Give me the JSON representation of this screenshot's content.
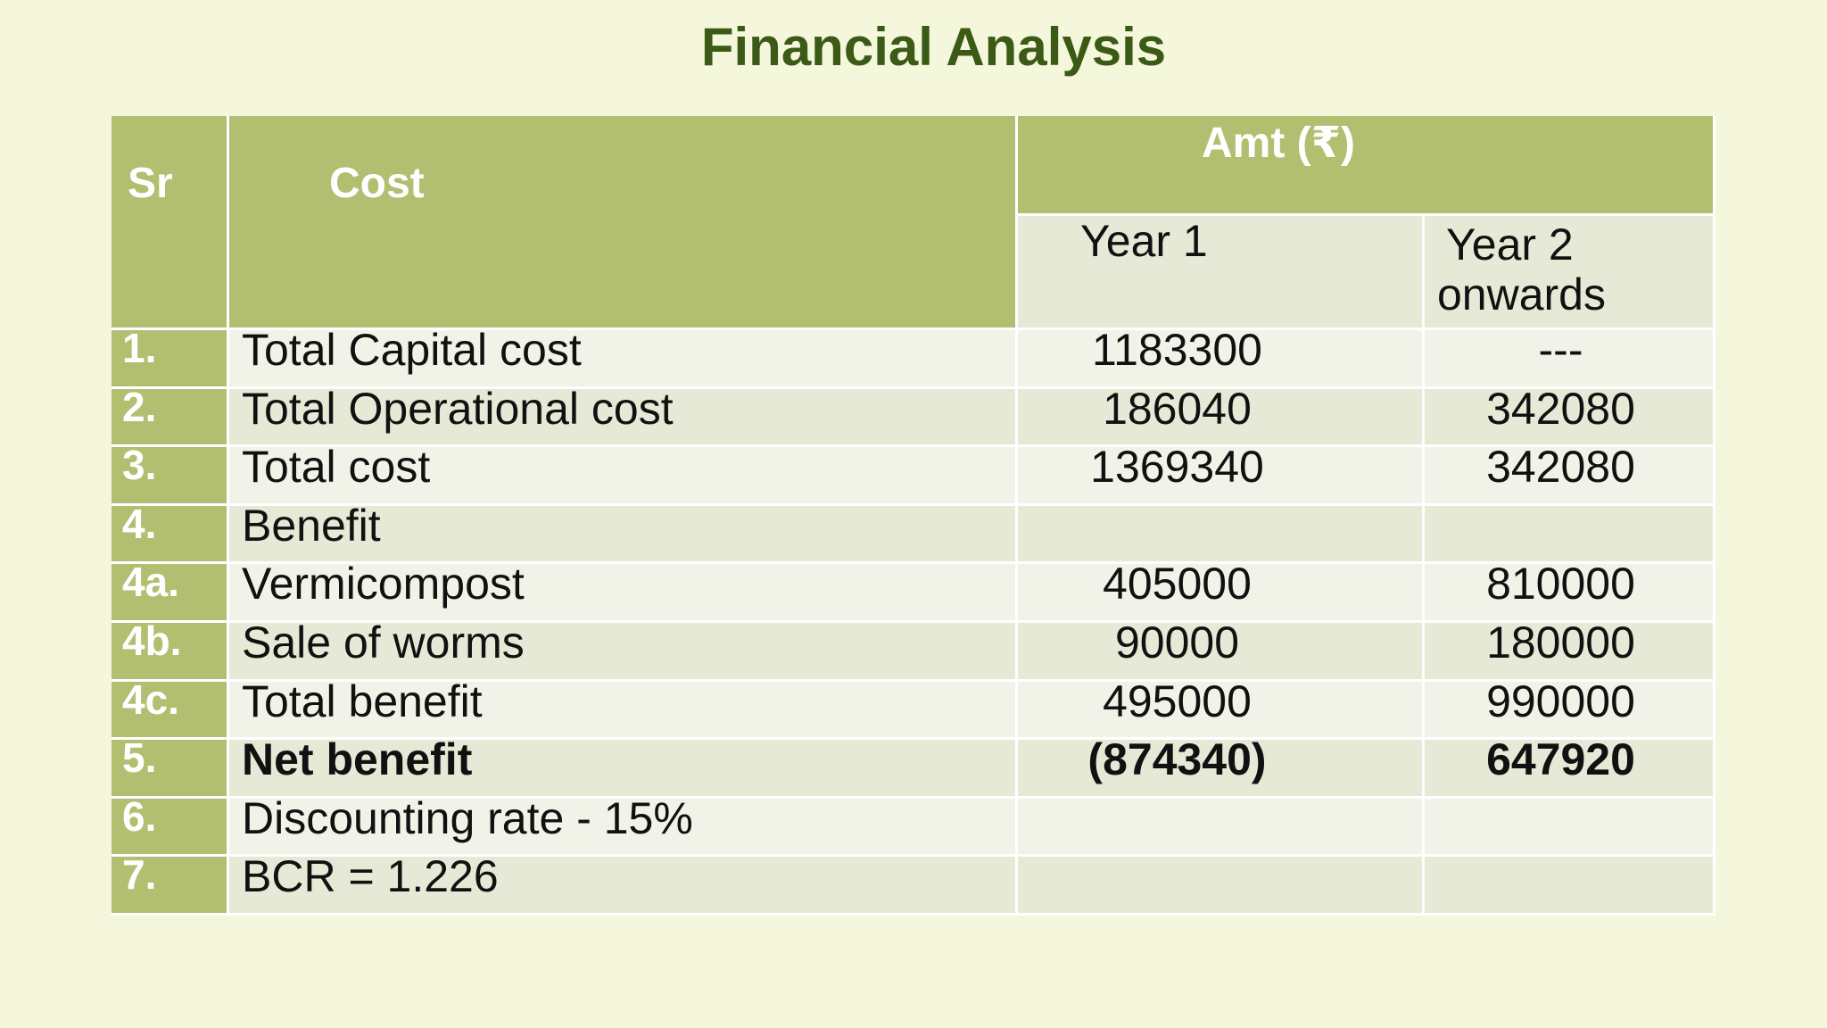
{
  "title": "Financial Analysis",
  "table": {
    "headers": {
      "sr": "Sr",
      "cost": "Cost",
      "amount": "Amt (₹)",
      "year1": "Year 1",
      "year2_line1": "Year 2",
      "year2_line2": "onwards"
    },
    "rows": [
      {
        "sr": "1.",
        "label": "Total Capital cost",
        "year1": "1183300",
        "year2": "---"
      },
      {
        "sr": "2.",
        "label": "Total Operational cost",
        "year1": "186040",
        "year2": "342080"
      },
      {
        "sr": "3.",
        "label": "Total cost",
        "year1": "1369340",
        "year2": "342080"
      },
      {
        "sr": "4.",
        "label": "Benefit",
        "year1": "",
        "year2": ""
      },
      {
        "sr": "4a.",
        "label": "Vermicompost",
        "year1": "405000",
        "year2": "810000"
      },
      {
        "sr": "4b.",
        "label": "Sale of worms",
        "year1": "90000",
        "year2": "180000"
      },
      {
        "sr": "4c.",
        "label": "Total benefit",
        "year1": "495000",
        "year2": "990000"
      },
      {
        "sr": "5.",
        "label": "Net benefit",
        "year1": "(874340)",
        "year2": "647920"
      },
      {
        "sr": "6.",
        "label": "Discounting rate - 15%",
        "year1": "",
        "year2": ""
      },
      {
        "sr": "7.",
        "label": "BCR = 1.226",
        "year1": "",
        "year2": ""
      }
    ]
  },
  "colors": {
    "background": "#f5f7dc",
    "title": "#3a5a15",
    "header": "#b3bf70",
    "row_light": "#f2f3e8",
    "row_dark": "#e6e9d6"
  }
}
